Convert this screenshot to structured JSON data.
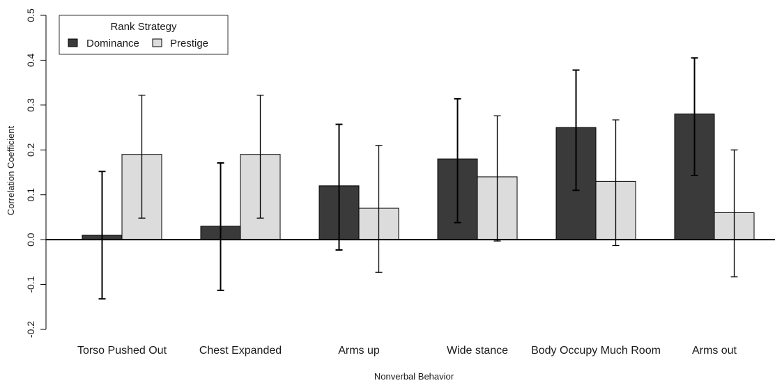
{
  "chart_data": {
    "type": "bar",
    "title": "",
    "xlabel": "Nonverbal Behavior",
    "ylabel": "Correlation Coefficient",
    "ylim": [
      -0.2,
      0.5
    ],
    "yticks": [
      "-0.2",
      "-0.1",
      "0.0",
      "0.1",
      "0.2",
      "0.3",
      "0.4",
      "0.5"
    ],
    "categories": [
      "Torso Pushed Out",
      "Chest Expanded",
      "Arms up",
      "Wide stance",
      "Body Occupy Much Room",
      "Arms out"
    ],
    "legend": {
      "title": "Rank Strategy",
      "position": "top-left"
    },
    "series": [
      {
        "name": "Dominance",
        "color": "#3a3a3a",
        "values": [
          0.01,
          0.03,
          0.12,
          0.18,
          0.25,
          0.28
        ],
        "error_low": [
          -0.132,
          -0.113,
          -0.023,
          0.038,
          0.11,
          0.143
        ],
        "error_high": [
          0.152,
          0.171,
          0.257,
          0.314,
          0.378,
          0.405
        ]
      },
      {
        "name": "Prestige",
        "color": "#dcdcdc",
        "values": [
          0.19,
          0.19,
          0.07,
          0.14,
          0.13,
          0.06
        ],
        "error_low": [
          0.048,
          0.048,
          -0.073,
          -0.003,
          -0.013,
          -0.083
        ],
        "error_high": [
          0.322,
          0.322,
          0.21,
          0.276,
          0.267,
          0.2
        ]
      }
    ],
    "grid": false
  }
}
